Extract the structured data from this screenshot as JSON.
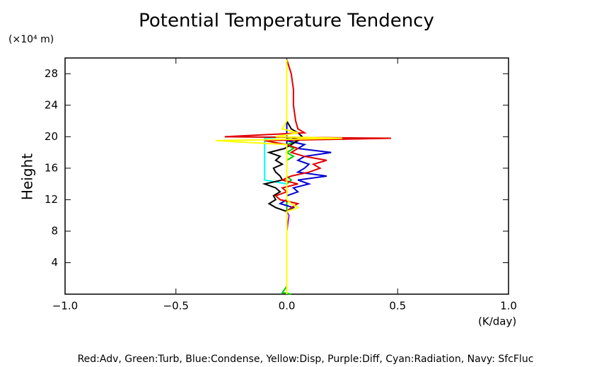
{
  "chart_data": {
    "type": "line",
    "title": "Potential Temperature Tendency",
    "y_unit_label": "(×10⁴ m)",
    "y_label": "Height",
    "x_label": "(K/day)",
    "legend_text": "Red:Adv, Green:Turb, Blue:Condense, Yellow:Disp, Purple:Diff, Cyan:Radiation, Navy: SfcFluc",
    "xlim": [
      -1,
      1
    ],
    "xticks": [
      {
        "value": -1,
        "label": "−1.0"
      },
      {
        "value": -0.5,
        "label": "−0.5"
      },
      {
        "value": 0,
        "label": "0.0"
      },
      {
        "value": 0.5,
        "label": "0.5"
      },
      {
        "value": 1,
        "label": "1.0"
      }
    ],
    "ylim": [
      0,
      30
    ],
    "yticks": [
      4,
      8,
      12,
      16,
      20,
      24,
      28
    ],
    "y": [
      0,
      0.2,
      1,
      4,
      8,
      10,
      10.5,
      11,
      11.5,
      12,
      12.5,
      13,
      13.5,
      14,
      14.5,
      15,
      15.5,
      16,
      16.5,
      17,
      17.5,
      18,
      18.5,
      19,
      19.5,
      19.8,
      20,
      20.5,
      21,
      22,
      24,
      26,
      28,
      29.8
    ],
    "series": [
      {
        "color": "#00ffff",
        "values": [
          0,
          0,
          0,
          0,
          0,
          0,
          0,
          0,
          0,
          0,
          0,
          0,
          0,
          0,
          -0.1,
          -0.1,
          -0.1,
          -0.1,
          -0.1,
          -0.1,
          -0.1,
          -0.1,
          -0.1,
          -0.1,
          -0.1,
          -0.1,
          0,
          0,
          0,
          0,
          0,
          0,
          0,
          0
        ]
      },
      {
        "color": "#a020f0",
        "values": [
          0,
          0,
          0,
          0,
          0,
          0.01,
          0,
          0,
          0,
          0,
          0,
          0,
          0,
          0,
          0,
          0,
          0,
          0,
          0,
          0,
          0,
          0,
          0,
          0,
          0,
          0,
          0,
          0,
          0,
          0,
          0,
          0,
          0,
          0
        ]
      },
      {
        "color": "#000080",
        "values": [
          0,
          0,
          0,
          0,
          0,
          0,
          0,
          0,
          0,
          0,
          0,
          0,
          0,
          0,
          0,
          0,
          0,
          0,
          0,
          0,
          0,
          0,
          0,
          0,
          0,
          0,
          0,
          0,
          0,
          0,
          0,
          0,
          0,
          0
        ]
      },
      {
        "color": "#00cc00",
        "values": [
          0.02,
          -0.02,
          0,
          0,
          0,
          0,
          0,
          0,
          0,
          0,
          0,
          0,
          0,
          0,
          0.02,
          0,
          0,
          0,
          0,
          0,
          0.03,
          0,
          0.03,
          0,
          0.05,
          0,
          0,
          0,
          0,
          0,
          0,
          0,
          0,
          0
        ]
      },
      {
        "color": "#0000d0",
        "values": [
          0,
          0,
          0,
          0,
          0,
          0,
          0,
          0.03,
          -0.03,
          0,
          0,
          0.05,
          0.03,
          0.1,
          0.05,
          0.18,
          0.05,
          0.08,
          0.1,
          0.05,
          0.08,
          0.2,
          0.05,
          0.08,
          0,
          0,
          0,
          0,
          0,
          0,
          0,
          0,
          0,
          0
        ]
      },
      {
        "color": "#000000",
        "values": [
          0,
          0,
          0,
          0,
          0,
          0,
          0,
          -0.05,
          -0.08,
          -0.05,
          -0.06,
          -0.03,
          -0.05,
          -0.1,
          -0.02,
          -0.03,
          -0.05,
          -0.06,
          -0.02,
          -0.05,
          -0.03,
          -0.08,
          -0.01,
          0.02,
          0.05,
          0.03,
          0.07,
          0.05,
          0.02,
          0,
          0,
          0,
          0,
          0
        ]
      },
      {
        "color": "#e00000",
        "values": [
          0,
          0,
          0,
          0,
          0,
          0,
          0,
          0.02,
          0.05,
          -0.03,
          -0.05,
          0,
          -0.02,
          0.05,
          -0.02,
          0.02,
          0.1,
          0.15,
          0.12,
          0.18,
          0.08,
          0.02,
          0.05,
          0,
          -0.1,
          0.47,
          -0.28,
          0.08,
          0.05,
          0.04,
          0.03,
          0.03,
          0.02,
          0
        ]
      },
      {
        "color": "#ffff00",
        "values": [
          0,
          0,
          0,
          0,
          0,
          0,
          0,
          0.05,
          0.02,
          0,
          0,
          0,
          0,
          0,
          0,
          0,
          0,
          0,
          0,
          0,
          0,
          0,
          0,
          0,
          -0.32,
          0.25,
          -0.05,
          0.05,
          -0.02,
          0,
          0,
          0,
          0,
          0
        ]
      }
    ]
  }
}
